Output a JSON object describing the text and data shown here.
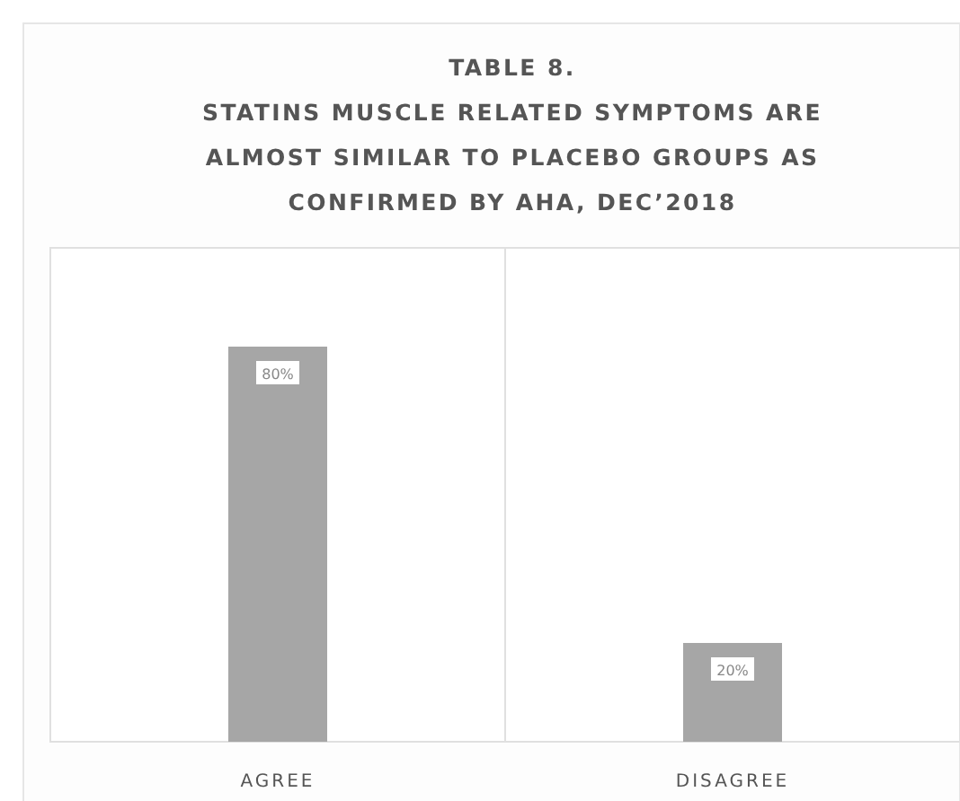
{
  "chart_data": {
    "type": "bar",
    "title": "TABLE 8.\nSTATINS MUSCLE RELATED SYMPTOMS ARE\nALMOST SIMILAR TO PLACEBO GROUPS AS\nCONFIRMED BY AHA, DEC’2018",
    "categories": [
      "AGREE",
      "DISAGREE"
    ],
    "values": [
      80,
      20
    ],
    "value_labels": [
      "80%",
      "20%"
    ],
    "color": "#a6a6a6",
    "grid": "x"
  }
}
